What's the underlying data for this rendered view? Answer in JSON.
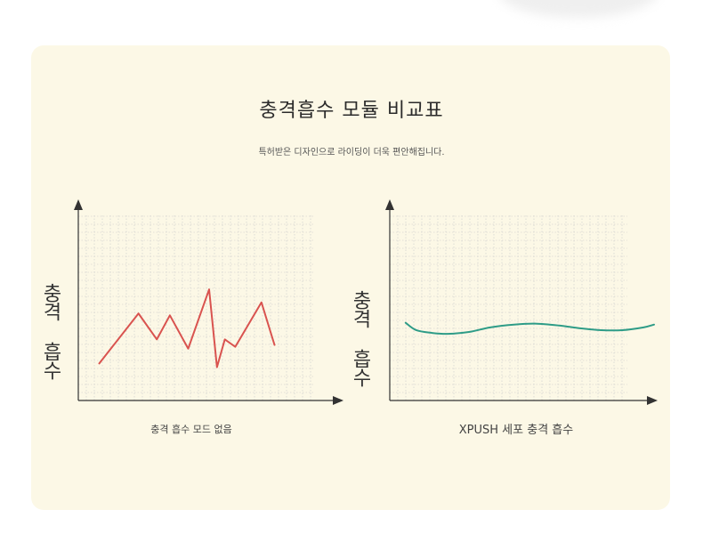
{
  "title": "충격흡수 모듈 비교표",
  "subtitle": "특허받은 디자인으로 라이딩이 더욱 편안해집니다.",
  "colors": {
    "background": "#fcf8e6",
    "grid": "#c9c9c9",
    "axis": "#333333",
    "left_series": "#d9534f",
    "right_series": "#2e9c87"
  },
  "chart_data": [
    {
      "type": "line",
      "title": "",
      "ylabel": "충격 흡수",
      "xlabel": "충격 흡수 모드 없음",
      "xlim": [
        0,
        1
      ],
      "ylim": [
        0,
        1
      ],
      "grid": true,
      "series": [
        {
          "color": "#d9534f",
          "x": [
            0.08,
            0.23,
            0.3,
            0.35,
            0.42,
            0.5,
            0.53,
            0.56,
            0.6,
            0.7,
            0.75
          ],
          "y": [
            0.2,
            0.47,
            0.33,
            0.46,
            0.28,
            0.6,
            0.18,
            0.33,
            0.29,
            0.53,
            0.3
          ]
        }
      ]
    },
    {
      "type": "line",
      "title": "",
      "ylabel": "충격 흡수",
      "xlabel": "XPUSH 세포 충격 흡수",
      "xlim": [
        0,
        1
      ],
      "ylim": [
        0,
        1
      ],
      "grid": true,
      "series": [
        {
          "color": "#2e9c87",
          "x": [
            0.06,
            0.1,
            0.16,
            0.22,
            0.3,
            0.38,
            0.47,
            0.55,
            0.64,
            0.72,
            0.8,
            0.88,
            0.96,
            1.0
          ],
          "y": [
            0.42,
            0.38,
            0.365,
            0.36,
            0.37,
            0.395,
            0.41,
            0.415,
            0.405,
            0.39,
            0.38,
            0.38,
            0.395,
            0.41
          ]
        }
      ]
    }
  ]
}
